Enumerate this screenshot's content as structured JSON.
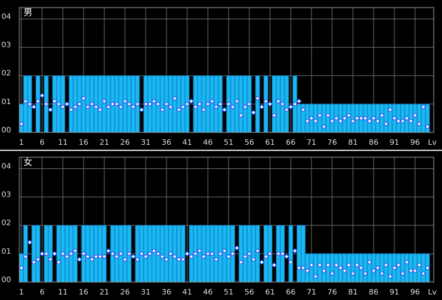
{
  "chart_data": [
    {
      "type": "bar",
      "title": "男",
      "xlabel": "Lv",
      "x": [
        1,
        2,
        3,
        4,
        5,
        6,
        7,
        8,
        9,
        10,
        11,
        12,
        13,
        14,
        15,
        16,
        17,
        18,
        19,
        20,
        21,
        22,
        23,
        24,
        25,
        26,
        27,
        28,
        29,
        30,
        31,
        32,
        33,
        34,
        35,
        36,
        37,
        38,
        39,
        40,
        41,
        42,
        43,
        44,
        45,
        46,
        47,
        48,
        49,
        50,
        51,
        52,
        53,
        54,
        55,
        56,
        57,
        58,
        59,
        60,
        61,
        62,
        63,
        64,
        65,
        66,
        67,
        68,
        69,
        70,
        71,
        72,
        73,
        74,
        75,
        76,
        77,
        78,
        79,
        80,
        81,
        82,
        83,
        84,
        85,
        86,
        87,
        88,
        89,
        90,
        91,
        92,
        93,
        94,
        95,
        96,
        97,
        98,
        99
      ],
      "xlim": [
        0.5,
        99.5
      ],
      "xticks": [
        1,
        6,
        11,
        16,
        21,
        26,
        31,
        36,
        41,
        46,
        51,
        56,
        61,
        66,
        71,
        76,
        81,
        86,
        91,
        96
      ],
      "ylim": [
        0,
        4.4
      ],
      "yticks": [
        {
          "value": 0,
          "label": "00"
        },
        {
          "value": 1,
          "label": "01"
        },
        {
          "value": 2,
          "label": "02"
        },
        {
          "value": 3,
          "label": "03"
        },
        {
          "value": 4,
          "label": "04"
        }
      ],
      "grid": true,
      "series": [
        {
          "color": "#1ab8f4",
          "values": [
            1,
            2,
            2,
            0,
            2,
            0,
            2,
            0,
            2,
            2,
            2,
            0,
            2,
            2,
            2,
            2,
            2,
            2,
            2,
            2,
            2,
            2,
            2,
            2,
            2,
            2,
            2,
            2,
            2,
            0,
            2,
            2,
            2,
            2,
            2,
            2,
            2,
            2,
            2,
            2,
            2,
            0,
            2,
            2,
            2,
            2,
            2,
            2,
            2,
            0,
            2,
            2,
            2,
            2,
            2,
            2,
            0,
            2,
            0,
            2,
            0,
            2,
            2,
            2,
            2,
            0,
            2,
            1,
            1,
            1,
            1,
            1,
            1,
            1,
            1,
            1,
            1,
            1,
            1,
            1,
            1,
            1,
            1,
            1,
            1,
            1,
            1,
            1,
            1,
            1,
            1,
            1,
            1,
            1,
            1,
            1,
            1,
            1,
            1
          ]
        },
        {
          "color": "#ffffff",
          "marker": "diamond",
          "values": [
            0.3,
            1.1,
            1.0,
            0.9,
            1.1,
            1.3,
            1.0,
            0.8,
            1.1,
            1.0,
            0.9,
            1.0,
            0.8,
            0.9,
            1.0,
            1.2,
            0.9,
            1.0,
            0.9,
            0.8,
            1.1,
            0.9,
            1.0,
            1.0,
            0.9,
            1.1,
            1.0,
            0.9,
            1.0,
            0.8,
            1.0,
            1.0,
            1.1,
            1.0,
            0.8,
            1.0,
            0.9,
            1.2,
            0.8,
            0.9,
            1.0,
            1.1,
            0.9,
            1.0,
            0.8,
            1.0,
            1.1,
            0.9,
            1.0,
            0.8,
            1.0,
            0.9,
            1.1,
            0.6,
            0.9,
            1.0,
            0.7,
            1.2,
            0.9,
            1.1,
            1.0,
            0.6,
            1.1,
            1.0,
            0.8,
            0.9,
            1.0,
            1.1,
            0.8,
            0.4,
            0.5,
            0.4,
            0.6,
            0.2,
            0.6,
            0.4,
            0.5,
            0.4,
            0.5,
            0.6,
            0.4,
            0.5,
            0.5,
            0.5,
            0.4,
            0.5,
            0.4,
            0.6,
            0.3,
            0.8,
            0.5,
            0.4,
            0.4,
            0.5,
            0.4,
            0.6,
            0.3,
            0.9,
            0.2
          ]
        }
      ]
    },
    {
      "type": "bar",
      "title": "女",
      "xlabel": "Lv",
      "x": [
        1,
        2,
        3,
        4,
        5,
        6,
        7,
        8,
        9,
        10,
        11,
        12,
        13,
        14,
        15,
        16,
        17,
        18,
        19,
        20,
        21,
        22,
        23,
        24,
        25,
        26,
        27,
        28,
        29,
        30,
        31,
        32,
        33,
        34,
        35,
        36,
        37,
        38,
        39,
        40,
        41,
        42,
        43,
        44,
        45,
        46,
        47,
        48,
        49,
        50,
        51,
        52,
        53,
        54,
        55,
        56,
        57,
        58,
        59,
        60,
        61,
        62,
        63,
        64,
        65,
        66,
        67,
        68,
        69,
        70,
        71,
        72,
        73,
        74,
        75,
        76,
        77,
        78,
        79,
        80,
        81,
        82,
        83,
        84,
        85,
        86,
        87,
        88,
        89,
        90,
        91,
        92,
        93,
        94,
        95,
        96,
        97,
        98,
        99
      ],
      "xlim": [
        0.5,
        99.5
      ],
      "xticks": [
        1,
        6,
        11,
        16,
        21,
        26,
        31,
        36,
        41,
        46,
        51,
        56,
        61,
        66,
        71,
        76,
        81,
        86,
        91,
        96
      ],
      "ylim": [
        0,
        4.4
      ],
      "yticks": [
        {
          "value": 0,
          "label": "00"
        },
        {
          "value": 1,
          "label": "01"
        },
        {
          "value": 2,
          "label": "02"
        },
        {
          "value": 3,
          "label": "03"
        },
        {
          "value": 4,
          "label": "04"
        }
      ],
      "grid": true,
      "series": [
        {
          "color": "#1ab8f4",
          "values": [
            1,
            2,
            0,
            2,
            2,
            0,
            2,
            2,
            0,
            2,
            2,
            2,
            2,
            2,
            0,
            2,
            2,
            2,
            2,
            2,
            2,
            0,
            2,
            2,
            2,
            2,
            2,
            0,
            2,
            2,
            2,
            2,
            2,
            2,
            2,
            2,
            2,
            2,
            2,
            2,
            0,
            2,
            2,
            2,
            2,
            2,
            2,
            2,
            2,
            2,
            2,
            2,
            0,
            2,
            2,
            2,
            2,
            2,
            0,
            2,
            2,
            0,
            2,
            2,
            0,
            2,
            0,
            2,
            2,
            1,
            1,
            1,
            1,
            1,
            1,
            1,
            1,
            1,
            1,
            1,
            1,
            1,
            1,
            1,
            1,
            1,
            1,
            1,
            1,
            1,
            1,
            1,
            1,
            1,
            1,
            1,
            1,
            1,
            1
          ]
        },
        {
          "color": "#ffffff",
          "marker": "diamond",
          "values": [
            0.5,
            0.9,
            1.4,
            0.7,
            0.8,
            1.0,
            1.0,
            0.8,
            1.0,
            0.7,
            1.0,
            0.9,
            1.0,
            1.1,
            0.8,
            1.0,
            0.9,
            0.8,
            0.9,
            0.9,
            0.9,
            1.1,
            1.0,
            0.9,
            1.0,
            0.8,
            1.0,
            0.9,
            0.8,
            1.0,
            0.9,
            1.0,
            1.1,
            1.0,
            0.9,
            0.8,
            1.0,
            0.9,
            0.8,
            0.8,
            1.0,
            0.9,
            1.0,
            1.1,
            0.9,
            1.0,
            1.0,
            0.8,
            1.0,
            1.1,
            0.9,
            1.0,
            1.2,
            0.7,
            0.9,
            1.0,
            0.8,
            1.1,
            0.7,
            0.9,
            1.0,
            0.6,
            1.0,
            1.0,
            0.9,
            0.7,
            1.1,
            0.5,
            0.5,
            0.4,
            0.6,
            0.2,
            0.6,
            0.4,
            0.6,
            0.3,
            0.6,
            0.5,
            0.4,
            0.6,
            0.3,
            0.6,
            0.5,
            0.3,
            0.7,
            0.4,
            0.5,
            0.3,
            0.6,
            0.2,
            0.5,
            0.6,
            0.3,
            0.7,
            0.4,
            0.4,
            0.6,
            0.3,
            0.5
          ]
        }
      ]
    }
  ]
}
